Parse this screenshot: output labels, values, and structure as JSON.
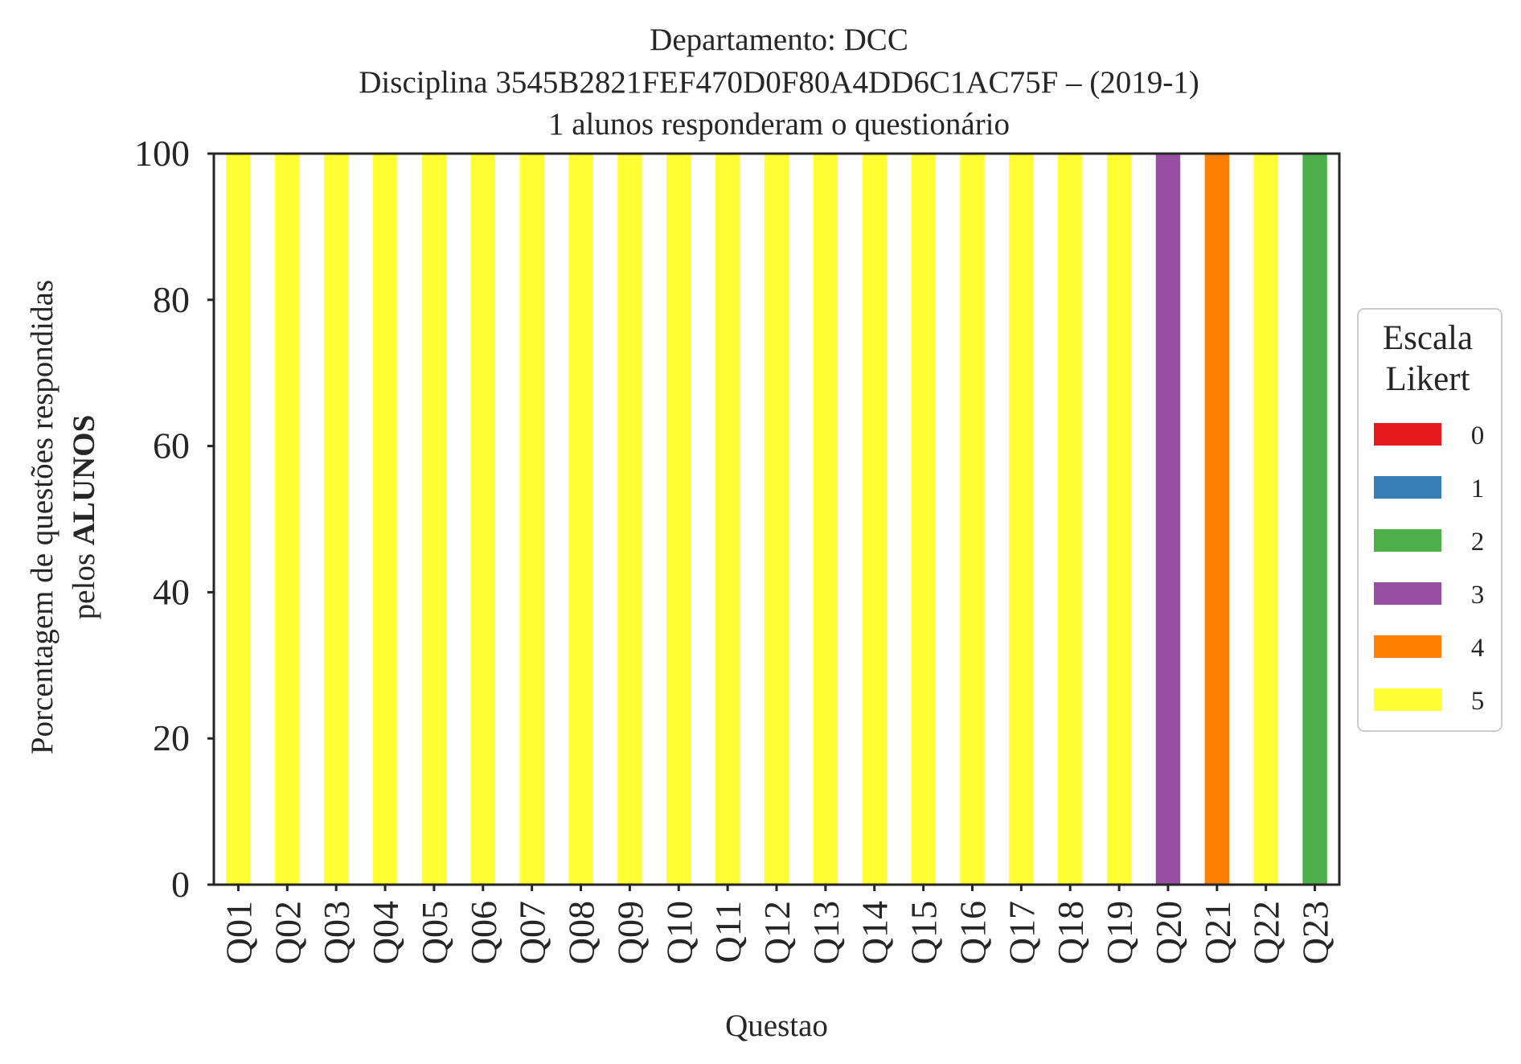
{
  "chart_data": {
    "type": "bar",
    "stacked": true,
    "title_lines": [
      "Departamento: DCC",
      "Disciplina 3545B2821FEF470D0F80A4DD6C1AC75F – (2019-1)",
      "1 alunos responderam o questionário"
    ],
    "xlabel": "Questao",
    "ylabel_line1": "Porcentagem de questões respondidas",
    "ylabel_line2_prefix": "pelos ",
    "ylabel_line2_bold": "ALUNOS",
    "ylim": [
      0,
      100
    ],
    "yticks": [
      "0",
      "20",
      "40",
      "60",
      "80",
      "100"
    ],
    "categories": [
      "Q01",
      "Q02",
      "Q03",
      "Q04",
      "Q05",
      "Q06",
      "Q07",
      "Q08",
      "Q09",
      "Q10",
      "Q11",
      "Q12",
      "Q13",
      "Q14",
      "Q15",
      "Q16",
      "Q17",
      "Q18",
      "Q19",
      "Q20",
      "Q21",
      "Q22",
      "Q23"
    ],
    "series": [
      {
        "name": "0",
        "color": "#e41a1c",
        "values": [
          0,
          0,
          0,
          0,
          0,
          0,
          0,
          0,
          0,
          0,
          0,
          0,
          0,
          0,
          0,
          0,
          0,
          0,
          0,
          0,
          0,
          0,
          0
        ]
      },
      {
        "name": "1",
        "color": "#377eb8",
        "values": [
          0,
          0,
          0,
          0,
          0,
          0,
          0,
          0,
          0,
          0,
          0,
          0,
          0,
          0,
          0,
          0,
          0,
          0,
          0,
          0,
          0,
          0,
          0
        ]
      },
      {
        "name": "2",
        "color": "#4daf4a",
        "values": [
          0,
          0,
          0,
          0,
          0,
          0,
          0,
          0,
          0,
          0,
          0,
          0,
          0,
          0,
          0,
          0,
          0,
          0,
          0,
          0,
          0,
          0,
          100
        ]
      },
      {
        "name": "3",
        "color": "#984ea3",
        "values": [
          0,
          0,
          0,
          0,
          0,
          0,
          0,
          0,
          0,
          0,
          0,
          0,
          0,
          0,
          0,
          0,
          0,
          0,
          0,
          100,
          0,
          0,
          0
        ]
      },
      {
        "name": "4",
        "color": "#ff7f00",
        "values": [
          0,
          0,
          0,
          0,
          0,
          0,
          0,
          0,
          0,
          0,
          0,
          0,
          0,
          0,
          0,
          0,
          0,
          0,
          0,
          0,
          100,
          0,
          0
        ]
      },
      {
        "name": "5",
        "color": "#ffff33",
        "values": [
          100,
          100,
          100,
          100,
          100,
          100,
          100,
          100,
          100,
          100,
          100,
          100,
          100,
          100,
          100,
          100,
          100,
          100,
          100,
          0,
          0,
          100,
          0
        ]
      }
    ],
    "legend": {
      "title_lines": [
        "Escala",
        "Likert"
      ],
      "placement": "right-center"
    },
    "grid": false
  }
}
